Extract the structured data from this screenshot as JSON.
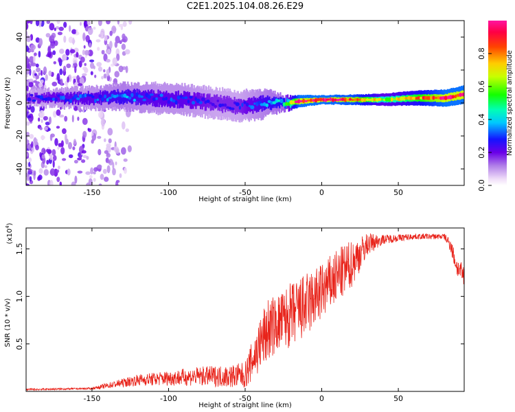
{
  "chart_data": [
    {
      "type": "heatmap",
      "title": "C2E1.2025.104.08.26.E29",
      "xlabel": "Height of straight line (km)",
      "ylabel": "Frequency (Hz)",
      "xlim": [
        -193,
        93
      ],
      "ylim": [
        -50,
        50
      ],
      "xticks": [
        -150,
        -100,
        -50,
        0,
        50
      ],
      "xtick_labels": [
        "-150",
        "-100",
        "-50",
        "0",
        "50"
      ],
      "yticks": [
        -40,
        -20,
        0,
        20,
        40
      ],
      "ytick_labels": [
        "-40",
        "-20",
        "0",
        "20",
        "40"
      ],
      "colorbar": {
        "label": "Normalized spectral amplitude",
        "range": [
          0,
          1
        ],
        "ticks": [
          0.0,
          0.2,
          0.4,
          0.6,
          0.8
        ],
        "tick_labels": [
          "0.0",
          "0.2",
          "0.4",
          "0.6",
          "0.8"
        ],
        "colormap": "rainbow (white-violet-blue-cyan-green-yellow-orange-red-magenta)"
      },
      "ridge_center_hz": {
        "x": [
          -190,
          -170,
          -150,
          -130,
          -110,
          -90,
          -70,
          -55,
          -45,
          -35,
          -25,
          -15,
          0,
          20,
          40,
          60,
          80,
          92
        ],
        "y": [
          3,
          3,
          3,
          4,
          3,
          2,
          0,
          -2,
          -1,
          0,
          0,
          1,
          2,
          2,
          2,
          3,
          3,
          5
        ]
      },
      "ridge_amplitude": {
        "x": [
          -190,
          -170,
          -150,
          -130,
          -110,
          -90,
          -70,
          -55,
          -45,
          -35,
          -25,
          -15,
          0,
          20,
          40,
          60,
          80,
          92
        ],
        "y": [
          0.25,
          0.3,
          0.3,
          0.35,
          0.3,
          0.3,
          0.25,
          0.25,
          0.3,
          0.35,
          0.4,
          0.95,
          0.95,
          0.9,
          0.6,
          0.75,
          0.95,
          0.95
        ]
      },
      "ridge_halfwidth_hz": {
        "x": [
          -190,
          -150,
          -110,
          -70,
          -40,
          -25,
          0,
          30,
          60,
          92
        ],
        "y": [
          2,
          3,
          4,
          4,
          4,
          2,
          1.2,
          1.5,
          2,
          2.5
        ]
      },
      "scatter_region": {
        "x_range": [
          -193,
          -125
        ],
        "y_range": [
          -50,
          50
        ],
        "amplitude_max": 0.2
      }
    },
    {
      "type": "line",
      "xlabel": "Height of straight line (km)",
      "ylabel": "SNR (10 * v/v)",
      "y_multiplier_label": "(x10",
      "y_multiplier_exp": "4",
      "y_multiplier_close": ")",
      "xlim": [
        -193,
        93
      ],
      "ylim": [
        0,
        1.72
      ],
      "xticks": [
        -150,
        -100,
        -50,
        0,
        50
      ],
      "xtick_labels": [
        "-150",
        "-100",
        "-50",
        "0",
        "50"
      ],
      "yticks": [
        0.5,
        1.0,
        1.5
      ],
      "ytick_labels": [
        "0.5",
        "1.0",
        "1.5"
      ],
      "color": "#e8231a",
      "envelope": {
        "x": [
          -193,
          -150,
          -140,
          -120,
          -100,
          -80,
          -60,
          -50,
          -40,
          -35,
          -30,
          -20,
          -10,
          0,
          10,
          20,
          30,
          40,
          60,
          80,
          84,
          88,
          93
        ],
        "mean": [
          0.02,
          0.03,
          0.06,
          0.12,
          0.14,
          0.16,
          0.16,
          0.17,
          0.5,
          0.65,
          0.7,
          0.8,
          0.9,
          1.05,
          1.2,
          1.35,
          1.55,
          1.6,
          1.63,
          1.63,
          1.55,
          1.32,
          1.2
        ],
        "amp": [
          0.01,
          0.01,
          0.03,
          0.06,
          0.08,
          0.1,
          0.12,
          0.14,
          0.3,
          0.35,
          0.3,
          0.35,
          0.35,
          0.3,
          0.3,
          0.25,
          0.12,
          0.05,
          0.03,
          0.03,
          0.08,
          0.1,
          0.12
        ]
      }
    }
  ]
}
